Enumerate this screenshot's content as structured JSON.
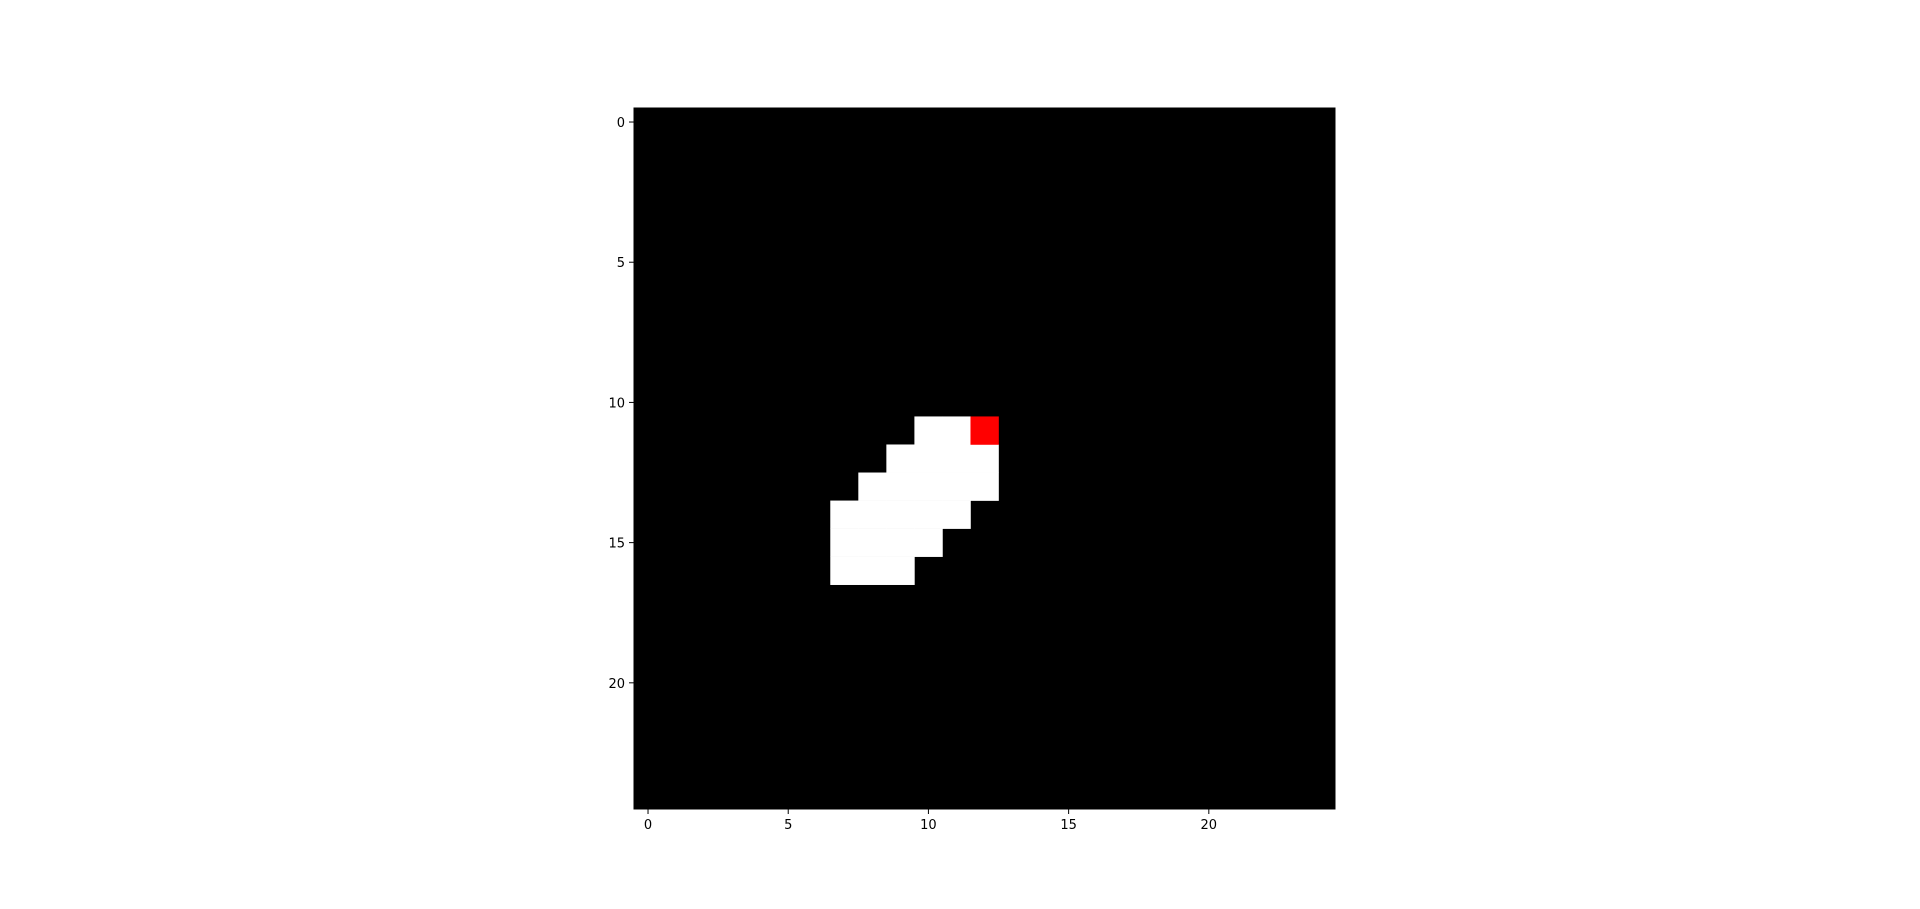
{
  "chart_data": {
    "type": "heatmap",
    "title": "",
    "xlabel": "",
    "ylabel": "",
    "grid_size": [
      25,
      25
    ],
    "xlim": [
      -0.5,
      24.5
    ],
    "ylim": [
      24.5,
      -0.5
    ],
    "xticks": [
      0,
      5,
      10,
      15,
      20
    ],
    "yticks": [
      0,
      5,
      10,
      15,
      20
    ],
    "xtick_labels": [
      "0",
      "5",
      "10",
      "15",
      "20"
    ],
    "ytick_labels": [
      "0",
      "5",
      "10",
      "15",
      "20"
    ],
    "colors": {
      "background": "#000000",
      "white": "#ffffff",
      "red": "#ff0000"
    },
    "white_cells": [
      [
        11,
        10
      ],
      [
        11,
        11
      ],
      [
        12,
        9
      ],
      [
        12,
        10
      ],
      [
        12,
        11
      ],
      [
        12,
        12
      ],
      [
        13,
        8
      ],
      [
        13,
        9
      ],
      [
        13,
        10
      ],
      [
        13,
        11
      ],
      [
        13,
        12
      ],
      [
        14,
        7
      ],
      [
        14,
        8
      ],
      [
        14,
        9
      ],
      [
        14,
        10
      ],
      [
        14,
        11
      ],
      [
        15,
        7
      ],
      [
        15,
        8
      ],
      [
        15,
        9
      ],
      [
        15,
        10
      ],
      [
        16,
        7
      ],
      [
        16,
        8
      ],
      [
        16,
        9
      ]
    ],
    "red_cells": [
      [
        11,
        12
      ]
    ]
  }
}
